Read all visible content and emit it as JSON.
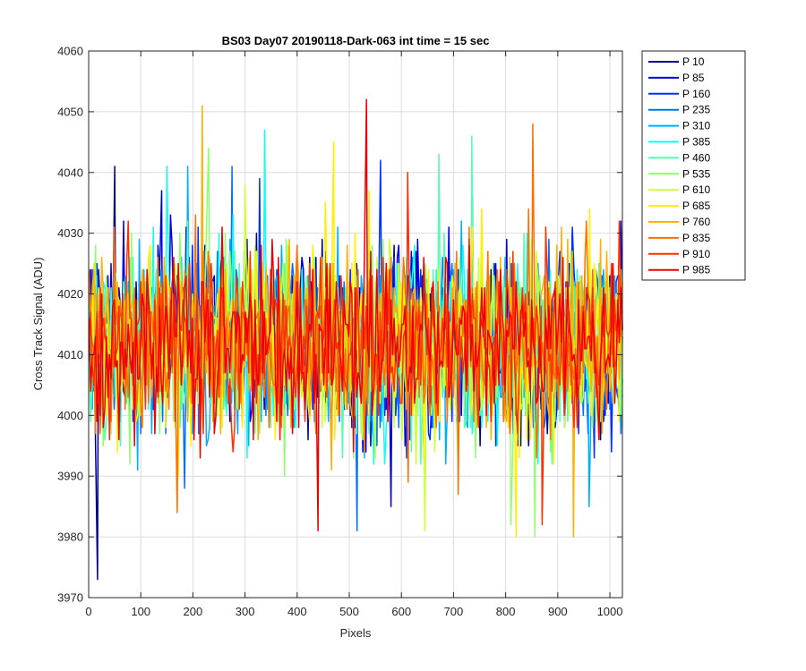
{
  "chart_data": {
    "type": "line",
    "title": "BS03 Day07 20190118-Dark-063 int time = 15 sec",
    "xlabel": "Pixels",
    "ylabel": "Cross Track Signal (ADU)",
    "xlim": [
      0,
      1024
    ],
    "ylim": [
      3970,
      4060
    ],
    "x_ticks": [
      0,
      100,
      200,
      300,
      400,
      500,
      600,
      700,
      800,
      900,
      1000
    ],
    "y_ticks": [
      3970,
      3980,
      3990,
      4000,
      4010,
      4020,
      4030,
      4040,
      4050,
      4060
    ],
    "grid": true,
    "legend_position": "outside-top-right",
    "x_range": [
      1,
      1024
    ],
    "signal_mean": 4012,
    "signal_std": 7.5,
    "series": [
      {
        "name": "P 10",
        "color": "#00008F",
        "notable_points": [
          [
            17,
            3973
          ],
          [
            50,
            4041
          ]
        ]
      },
      {
        "name": "P 85",
        "color": "#0000DF",
        "notable_points": [
          [
            140,
            4037
          ],
          [
            580,
            3985
          ]
        ]
      },
      {
        "name": "P 160",
        "color": "#0030FF",
        "notable_points": [
          [
            560,
            4042
          ],
          [
            210,
            4031
          ]
        ]
      },
      {
        "name": "P 235",
        "color": "#0070FF",
        "notable_points": [
          [
            275,
            4041
          ],
          [
            515,
            3981
          ]
        ]
      },
      {
        "name": "P 310",
        "color": "#00B0FF",
        "notable_points": [
          [
            190,
            4041
          ],
          [
            960,
            3985
          ]
        ]
      },
      {
        "name": "P 385",
        "color": "#10FFEF",
        "notable_points": [
          [
            338,
            4047
          ],
          [
            150,
            4041
          ]
        ]
      },
      {
        "name": "P 460",
        "color": "#50FFAF",
        "notable_points": [
          [
            735,
            4046
          ],
          [
            672,
            4043
          ]
        ]
      },
      {
        "name": "P 535",
        "color": "#8FFF70",
        "notable_points": [
          [
            230,
            4044
          ],
          [
            810,
            3982
          ]
        ]
      },
      {
        "name": "P 610",
        "color": "#CFFF30",
        "notable_points": [
          [
            300,
            4038
          ],
          [
            645,
            3981
          ]
        ]
      },
      {
        "name": "P 685",
        "color": "#FFEF00",
        "notable_points": [
          [
            470,
            4045
          ],
          [
            820,
            3980
          ]
        ]
      },
      {
        "name": "P 760",
        "color": "#FFAF00",
        "notable_points": [
          [
            218,
            4051
          ],
          [
            930,
            3980
          ]
        ]
      },
      {
        "name": "P 835",
        "color": "#FF7000",
        "notable_points": [
          [
            852,
            4048
          ],
          [
            170,
            3984
          ]
        ]
      },
      {
        "name": "P 910",
        "color": "#FF3000",
        "notable_points": [
          [
            612,
            4040
          ],
          [
            870,
            3982
          ]
        ]
      },
      {
        "name": "P 985",
        "color": "#EF0000",
        "notable_points": [
          [
            533,
            4052
          ],
          [
            440,
            3981
          ]
        ]
      }
    ]
  }
}
